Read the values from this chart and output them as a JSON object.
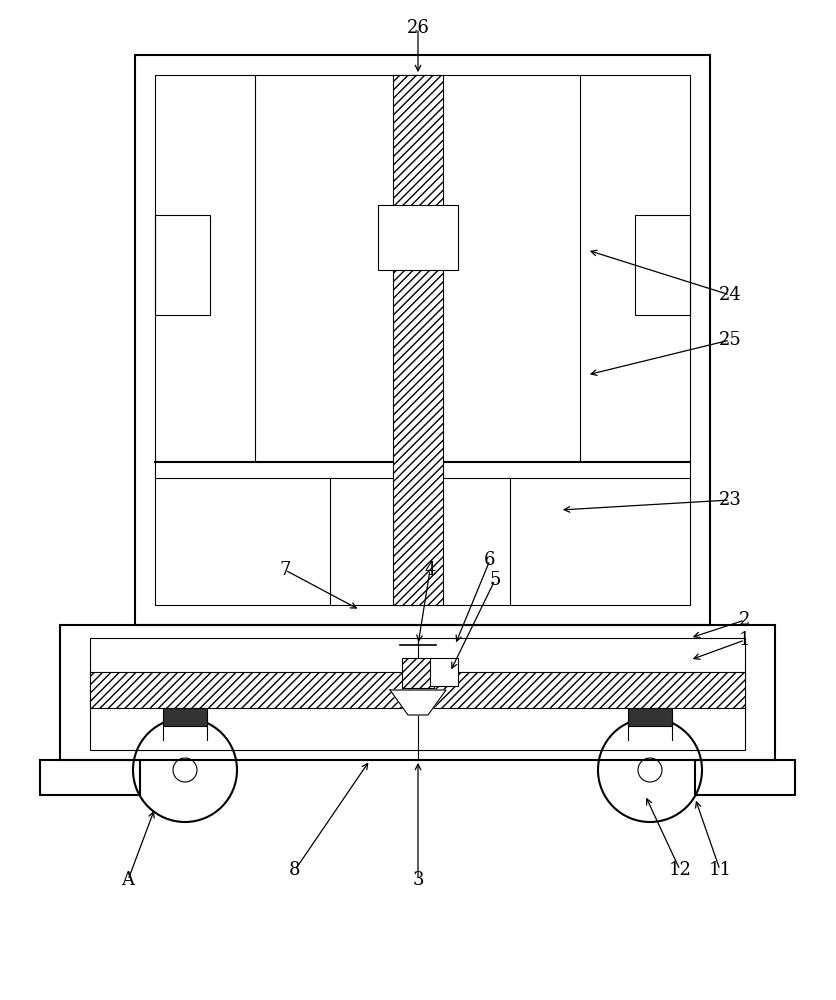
{
  "bg_color": "#ffffff",
  "line_color": "#000000",
  "fig_width": 8.37,
  "fig_height": 10.0,
  "lw_main": 1.5,
  "lw_thin": 0.8,
  "lw_med": 1.2
}
